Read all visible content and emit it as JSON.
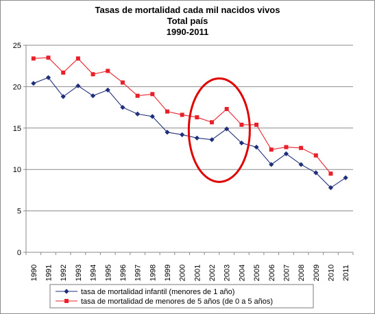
{
  "chart_data": {
    "type": "line",
    "title": "Tasas de mortalidad cada mil nacidos vivos",
    "subtitle": "Total país",
    "subtitle2": "1990-2011",
    "xlabel": "",
    "ylabel": "",
    "categories": [
      "1990",
      "1991",
      "1992",
      "1993",
      "1994",
      "1995",
      "1996",
      "1997",
      "1998",
      "1999",
      "2000",
      "2001",
      "2002",
      "2003",
      "2004",
      "2005",
      "2006",
      "2007",
      "2008",
      "2009",
      "2010",
      "2011"
    ],
    "yticks": [
      "0",
      "5",
      "10",
      "15",
      "20",
      "25"
    ],
    "ylim": [
      0,
      25
    ],
    "grid": "horizontal",
    "legend_position": "bottom",
    "series": [
      {
        "name": "tasa de mortalidad infantil (menores de 1 año)",
        "color": "#1f2f7a",
        "marker": "diamond",
        "values": [
          20.4,
          21.1,
          18.8,
          20.1,
          18.9,
          19.6,
          17.5,
          16.7,
          16.4,
          14.5,
          14.2,
          13.8,
          13.6,
          14.9,
          13.2,
          12.7,
          10.6,
          11.9,
          10.6,
          9.6,
          7.8,
          9.0
        ]
      },
      {
        "name": "tasa de mortalidad de menores de 5 años (de 0 a 5 años)",
        "color": "#e8202a",
        "marker": "square",
        "values": [
          23.4,
          23.5,
          21.7,
          23.4,
          21.5,
          21.9,
          20.5,
          18.9,
          19.1,
          17.0,
          16.6,
          16.3,
          15.7,
          17.3,
          15.4,
          15.4,
          12.4,
          12.7,
          12.6,
          11.7,
          9.5,
          null
        ]
      }
    ],
    "annotation": {
      "type": "ellipse",
      "color": "#e00000",
      "from_category": "2001",
      "to_category": "2004",
      "y_range": [
        8.5,
        21
      ]
    }
  }
}
